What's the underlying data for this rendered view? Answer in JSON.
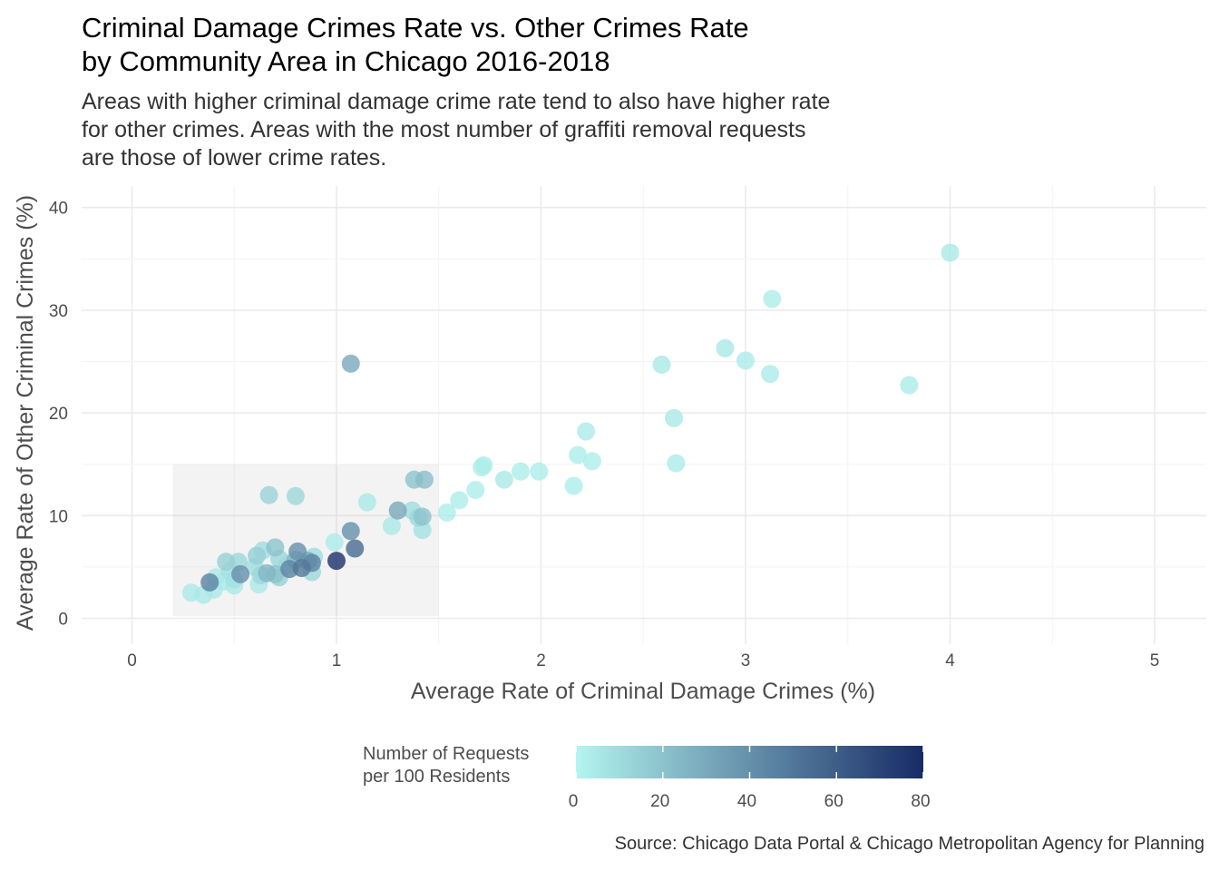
{
  "chart_data": {
    "type": "scatter",
    "title": "Criminal Damage Crimes Rate vs. Other Crimes Rate\nby Community Area in Chicago 2016-2018",
    "subtitle": "Areas with higher criminal damage crime rate tend to also have higher rate\nfor other crimes. Areas with the most number of graffiti removal requests\nare those of lower crime rates.",
    "caption": "Source: Chicago Data Portal & Chicago Metropolitan Agency for Planning",
    "xlabel": "Average Rate of Criminal Damage Crimes (%)",
    "ylabel": "Average Rate of Other Criminal Crimes (%)",
    "xlim": [
      -0.2,
      5.25
    ],
    "ylim": [
      -0.8,
      41.5
    ],
    "x_ticks": [
      0,
      1,
      2,
      3,
      4,
      5
    ],
    "x_tick_labels": [
      "0",
      "1",
      "2",
      "3",
      "4",
      "5"
    ],
    "y_ticks": [
      0,
      10,
      20,
      30,
      40
    ],
    "y_tick_labels": [
      "0",
      "10",
      "20",
      "30",
      "40"
    ],
    "grid": true,
    "highlight_rect": {
      "x": [
        0.2,
        1.5
      ],
      "y": [
        0.2,
        15
      ]
    },
    "color_scale": {
      "title": "Number of Requests\nper 100 Residents",
      "min": 0,
      "max": 80,
      "low_color": "#b3f5ef",
      "high_color": "#172b66",
      "ticks": [
        0,
        20,
        40,
        60,
        80
      ],
      "tick_labels": [
        "0",
        "20",
        "40",
        "60",
        "80"
      ],
      "position": "bottom"
    },
    "points": [
      {
        "x": 4.0,
        "y": 35.6,
        "c": 5
      },
      {
        "x": 3.13,
        "y": 31.1,
        "c": 3
      },
      {
        "x": 2.9,
        "y": 26.3,
        "c": 5
      },
      {
        "x": 3.0,
        "y": 25.1,
        "c": 4
      },
      {
        "x": 3.12,
        "y": 23.8,
        "c": 4
      },
      {
        "x": 2.59,
        "y": 24.7,
        "c": 5
      },
      {
        "x": 3.8,
        "y": 22.7,
        "c": 4
      },
      {
        "x": 1.07,
        "y": 24.8,
        "c": 30
      },
      {
        "x": 2.65,
        "y": 19.5,
        "c": 5
      },
      {
        "x": 2.22,
        "y": 18.2,
        "c": 4
      },
      {
        "x": 2.18,
        "y": 15.9,
        "c": 3
      },
      {
        "x": 2.25,
        "y": 15.3,
        "c": 3
      },
      {
        "x": 2.66,
        "y": 15.1,
        "c": 4
      },
      {
        "x": 1.72,
        "y": 14.9,
        "c": 3
      },
      {
        "x": 1.71,
        "y": 14.7,
        "c": 3
      },
      {
        "x": 1.9,
        "y": 14.3,
        "c": 3
      },
      {
        "x": 1.99,
        "y": 14.3,
        "c": 3
      },
      {
        "x": 1.82,
        "y": 13.5,
        "c": 5
      },
      {
        "x": 1.38,
        "y": 13.5,
        "c": 20
      },
      {
        "x": 1.43,
        "y": 13.5,
        "c": 22
      },
      {
        "x": 2.16,
        "y": 12.9,
        "c": 3
      },
      {
        "x": 1.68,
        "y": 12.5,
        "c": 3
      },
      {
        "x": 0.67,
        "y": 12.0,
        "c": 14
      },
      {
        "x": 0.8,
        "y": 11.9,
        "c": 12
      },
      {
        "x": 1.6,
        "y": 11.5,
        "c": 3
      },
      {
        "x": 1.15,
        "y": 11.3,
        "c": 5
      },
      {
        "x": 1.3,
        "y": 10.5,
        "c": 30
      },
      {
        "x": 1.37,
        "y": 10.5,
        "c": 10
      },
      {
        "x": 1.54,
        "y": 10.3,
        "c": 3
      },
      {
        "x": 1.42,
        "y": 9.9,
        "c": 20
      },
      {
        "x": 1.4,
        "y": 9.8,
        "c": 12
      },
      {
        "x": 1.27,
        "y": 9.0,
        "c": 5
      },
      {
        "x": 1.42,
        "y": 8.6,
        "c": 8
      },
      {
        "x": 1.07,
        "y": 8.5,
        "c": 40
      },
      {
        "x": 0.99,
        "y": 7.4,
        "c": 4
      },
      {
        "x": 0.7,
        "y": 6.9,
        "c": 20
      },
      {
        "x": 1.09,
        "y": 6.8,
        "c": 55
      },
      {
        "x": 0.64,
        "y": 6.6,
        "c": 10
      },
      {
        "x": 0.81,
        "y": 6.5,
        "c": 40
      },
      {
        "x": 0.61,
        "y": 6.1,
        "c": 15
      },
      {
        "x": 0.89,
        "y": 6.0,
        "c": 10
      },
      {
        "x": 0.72,
        "y": 5.8,
        "c": 12
      },
      {
        "x": 0.8,
        "y": 5.7,
        "c": 25
      },
      {
        "x": 0.86,
        "y": 5.6,
        "c": 30
      },
      {
        "x": 1.0,
        "y": 5.6,
        "c": 78
      },
      {
        "x": 0.46,
        "y": 5.5,
        "c": 15
      },
      {
        "x": 0.52,
        "y": 5.5,
        "c": 12
      },
      {
        "x": 0.88,
        "y": 5.4,
        "c": 45
      },
      {
        "x": 0.76,
        "y": 5.2,
        "c": 8
      },
      {
        "x": 0.6,
        "y": 5.0,
        "c": 10
      },
      {
        "x": 0.83,
        "y": 4.9,
        "c": 50
      },
      {
        "x": 0.77,
        "y": 4.8,
        "c": 45
      },
      {
        "x": 0.48,
        "y": 4.6,
        "c": 8
      },
      {
        "x": 0.88,
        "y": 4.5,
        "c": 12
      },
      {
        "x": 0.66,
        "y": 4.4,
        "c": 25
      },
      {
        "x": 0.7,
        "y": 4.3,
        "c": 20
      },
      {
        "x": 0.53,
        "y": 4.3,
        "c": 40
      },
      {
        "x": 0.63,
        "y": 4.2,
        "c": 12
      },
      {
        "x": 0.41,
        "y": 4.0,
        "c": 5
      },
      {
        "x": 0.72,
        "y": 4.0,
        "c": 15
      },
      {
        "x": 0.5,
        "y": 3.8,
        "c": 8
      },
      {
        "x": 0.45,
        "y": 3.6,
        "c": 5
      },
      {
        "x": 0.38,
        "y": 3.5,
        "c": 45
      },
      {
        "x": 0.62,
        "y": 3.3,
        "c": 5
      },
      {
        "x": 0.5,
        "y": 3.2,
        "c": 5
      },
      {
        "x": 0.4,
        "y": 2.8,
        "c": 5
      },
      {
        "x": 0.29,
        "y": 2.5,
        "c": 5
      },
      {
        "x": 0.35,
        "y": 2.3,
        "c": 5
      }
    ]
  }
}
